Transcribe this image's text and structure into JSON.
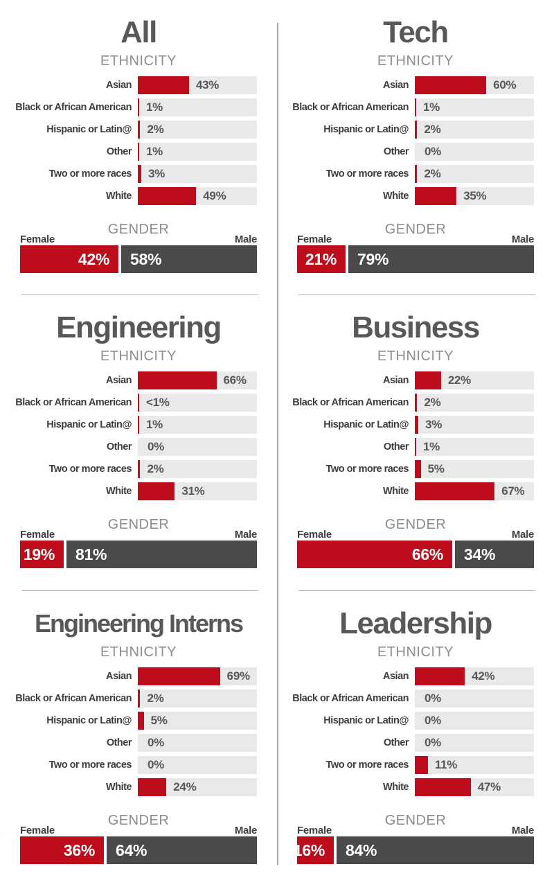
{
  "colors": {
    "red": "#bd0d1c",
    "male_gray": "#4a4a4a",
    "track": "#e9e9e9",
    "divider": "#aba89e",
    "title_text": "#58585a",
    "label_text": "#3d3d3d",
    "value_text": "#57575a",
    "heading_text": "#8c8c8c"
  },
  "section_labels": {
    "ethnicity": "ETHNICITY",
    "gender": "GENDER",
    "female": "Female",
    "male": "Male"
  },
  "ethnicity_categories": [
    "Asian",
    "Black or African American",
    "Hispanic or Latin@",
    "Other",
    "Two or more races",
    "White"
  ],
  "chart_data": [
    {
      "type": "bar",
      "title": "All",
      "categories": [
        "Asian",
        "Black or African American",
        "Hispanic or Latin@",
        "Other",
        "Two or more races",
        "White"
      ],
      "values": [
        43,
        1,
        2,
        1,
        3,
        49
      ],
      "value_labels": [
        "43%",
        "1%",
        "2%",
        "1%",
        "3%",
        "49%"
      ],
      "xlim": [
        0,
        100
      ],
      "grid": false,
      "gender": {
        "female_value": 42,
        "female_label": "42%",
        "male_value": 58,
        "male_label": "58%"
      }
    },
    {
      "type": "bar",
      "title": "Tech",
      "categories": [
        "Asian",
        "Black or African American",
        "Hispanic or Latin@",
        "Other",
        "Two or more races",
        "White"
      ],
      "values": [
        60,
        1,
        2,
        0,
        2,
        35
      ],
      "value_labels": [
        "60%",
        "1%",
        "2%",
        "0%",
        "2%",
        "35%"
      ],
      "xlim": [
        0,
        100
      ],
      "grid": false,
      "gender": {
        "female_value": 21,
        "female_label": "21%",
        "male_value": 79,
        "male_label": "79%"
      }
    },
    {
      "type": "bar",
      "title": "Engineering",
      "categories": [
        "Asian",
        "Black or African American",
        "Hispanic or Latin@",
        "Other",
        "Two or more races",
        "White"
      ],
      "values": [
        66,
        0.5,
        1,
        0,
        2,
        31
      ],
      "value_labels": [
        "66%",
        "<1%",
        "1%",
        "0%",
        "2%",
        "31%"
      ],
      "xlim": [
        0,
        100
      ],
      "grid": false,
      "gender": {
        "female_value": 19,
        "female_label": "19%",
        "male_value": 81,
        "male_label": "81%"
      }
    },
    {
      "type": "bar",
      "title": "Business",
      "categories": [
        "Asian",
        "Black or African American",
        "Hispanic or Latin@",
        "Other",
        "Two or more races",
        "White"
      ],
      "values": [
        22,
        2,
        3,
        1,
        5,
        67
      ],
      "value_labels": [
        "22%",
        "2%",
        "3%",
        "1%",
        "5%",
        "67%"
      ],
      "xlim": [
        0,
        100
      ],
      "grid": false,
      "gender": {
        "female_value": 66,
        "female_label": "66%",
        "male_value": 34,
        "male_label": "34%"
      }
    },
    {
      "type": "bar",
      "title": "Engineering Interns",
      "categories": [
        "Asian",
        "Black or African American",
        "Hispanic or Latin@",
        "Other",
        "Two or more races",
        "White"
      ],
      "values": [
        69,
        2,
        5,
        0,
        0,
        24
      ],
      "value_labels": [
        "69%",
        "2%",
        "5%",
        "0%",
        "0%",
        "24%"
      ],
      "xlim": [
        0,
        100
      ],
      "grid": false,
      "gender": {
        "female_value": 36,
        "female_label": "36%",
        "male_value": 64,
        "male_label": "64%"
      }
    },
    {
      "type": "bar",
      "title": "Leadership",
      "categories": [
        "Asian",
        "Black or African American",
        "Hispanic or Latin@",
        "Other",
        "Two or more races",
        "White"
      ],
      "values": [
        42,
        0,
        0,
        0,
        11,
        47
      ],
      "value_labels": [
        "42%",
        "0%",
        "0%",
        "0%",
        "11%",
        "47%"
      ],
      "xlim": [
        0,
        100
      ],
      "grid": false,
      "gender": {
        "female_value": 16,
        "female_label": "16%",
        "male_value": 84,
        "male_label": "84%"
      }
    }
  ]
}
